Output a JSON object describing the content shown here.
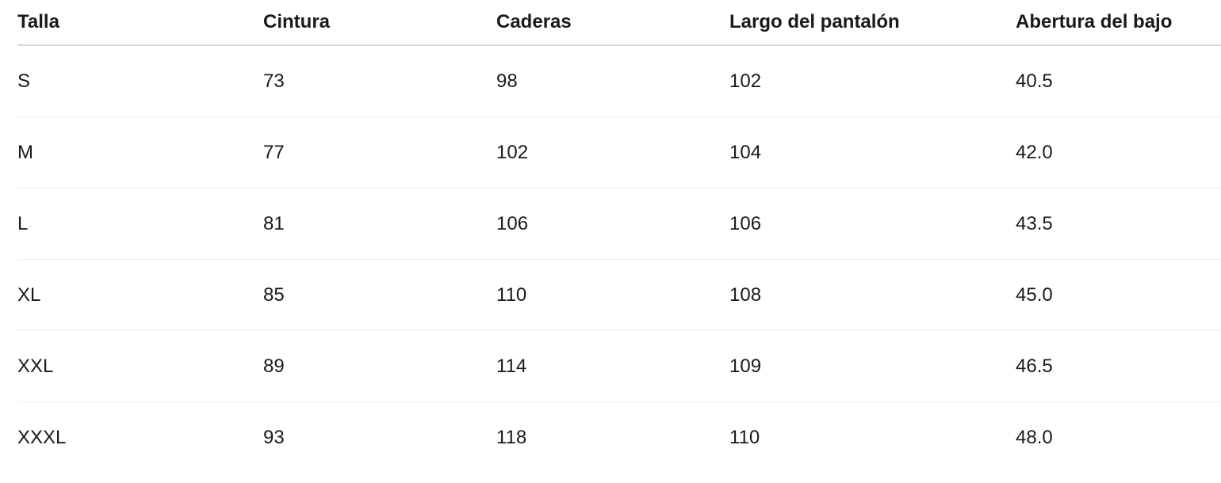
{
  "table": {
    "headers": [
      "Talla",
      "Cintura",
      "Caderas",
      "Largo del pantalón",
      "Abertura del bajo"
    ],
    "rows": [
      [
        "S",
        "73",
        "98",
        "102",
        "40.5"
      ],
      [
        "M",
        "77",
        "102",
        "104",
        "42.0"
      ],
      [
        "L",
        "81",
        "106",
        "106",
        "43.5"
      ],
      [
        "XL",
        "85",
        "110",
        "108",
        "45.0"
      ],
      [
        "XXL",
        "89",
        "114",
        "109",
        "46.5"
      ],
      [
        "XXXL",
        "93",
        "118",
        "110",
        "48.0"
      ]
    ]
  }
}
